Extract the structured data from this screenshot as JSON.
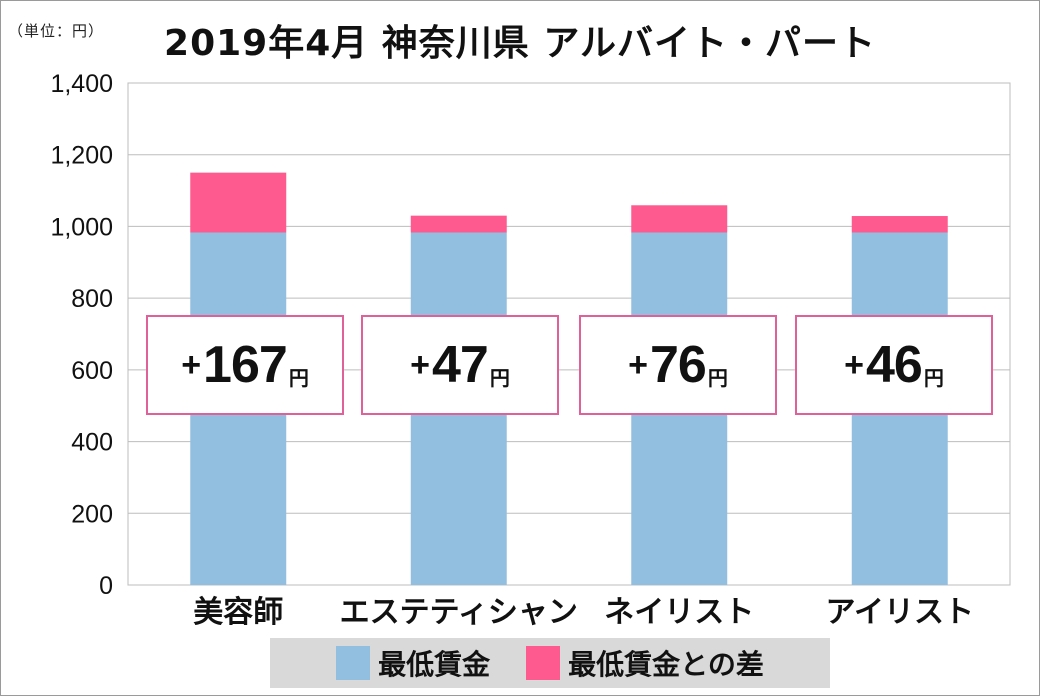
{
  "unit_label": "（単位：円）",
  "title": "2019年4月 神奈川県 アルバイト・パート",
  "colors": {
    "base": "#92bfe0",
    "diff": "#ff5a8f",
    "gridline": "#bdbdbd",
    "box_border": "#e0609a"
  },
  "chart_data": {
    "type": "bar",
    "stacked": true,
    "categories": [
      "美容師",
      "エステティシャン",
      "ネイリスト",
      "アイリスト"
    ],
    "series": [
      {
        "name": "最低賃金",
        "values": [
          983,
          983,
          983,
          983
        ]
      },
      {
        "name": "最低賃金との差",
        "values": [
          167,
          47,
          76,
          46
        ]
      }
    ],
    "ylim": [
      0,
      1400
    ],
    "yticks": [
      "0",
      "200",
      "400",
      "600",
      "800",
      "1,000",
      "1,200",
      "1,400"
    ],
    "grid": true,
    "legend_position": "bottom"
  },
  "diff_labels": [
    {
      "sign": "+",
      "num": "167",
      "yen": "円"
    },
    {
      "sign": "+",
      "num": "47",
      "yen": "円"
    },
    {
      "sign": "+",
      "num": "76",
      "yen": "円"
    },
    {
      "sign": "+",
      "num": "46",
      "yen": "円"
    }
  ],
  "legend": [
    {
      "label": "最低賃金"
    },
    {
      "label": "最低賃金との差"
    }
  ]
}
